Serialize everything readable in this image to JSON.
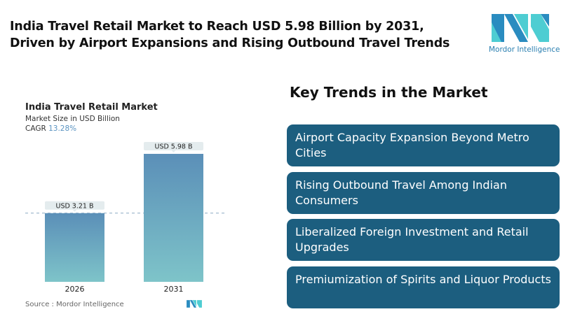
{
  "header": {
    "title": "India Travel Retail Market to Reach USD 5.98 Billion by 2031, Driven by Airport Expansions and Rising Outbound Travel Trends",
    "logo_text": "Mordor Intelligence"
  },
  "chart_data": {
    "type": "bar",
    "title": "India Travel Retail Market",
    "subtitle": "Market Size in USD Billion",
    "cagr_label": "CAGR",
    "cagr_value": "13.28%",
    "categories": [
      "2026",
      "2031"
    ],
    "values": [
      3.21,
      5.98
    ],
    "data_labels": [
      "USD 3.21 B",
      "USD 5.98 B"
    ],
    "ylim": [
      0,
      6.5
    ],
    "grid": false,
    "colors": {
      "bar_top": "#5b8fb8",
      "bar_bottom": "#7ec4c9",
      "label_bg": "#e4ecee",
      "dashed_line": "#8aa9c4"
    }
  },
  "source": "Source :  Mordor Intelligence",
  "trends": {
    "title": "Key Trends in the Market",
    "items": [
      "Airport Capacity Expansion Beyond Metro Cities",
      "Rising Outbound Travel Among Indian Consumers",
      "Liberalized Foreign Investment and Retail Upgrades",
      "Premiumization of Spirits and Liquor Products"
    ],
    "box_color": "#1c5e7f"
  }
}
